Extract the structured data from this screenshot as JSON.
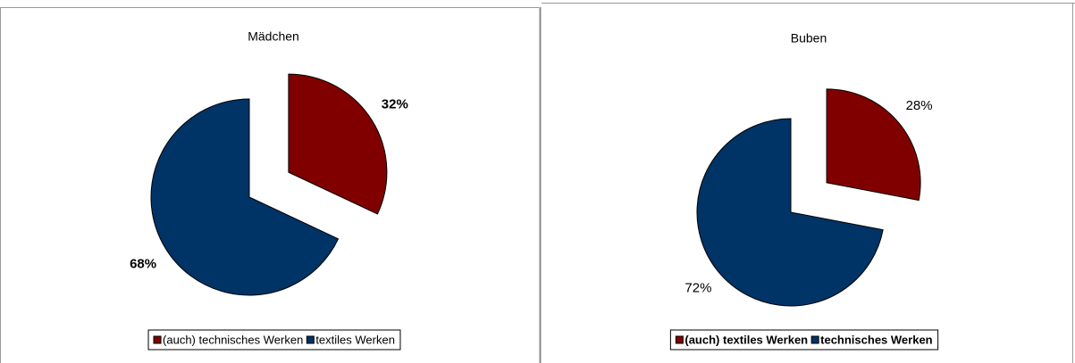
{
  "chart_data": [
    {
      "type": "pie",
      "title": "Mädchen",
      "categories": [
        "(auch) technisches Werken",
        "textiles Werken"
      ],
      "values": [
        32,
        68
      ],
      "value_labels": [
        "32%",
        "68%"
      ],
      "colors": [
        "#800000",
        "#003366"
      ],
      "label_bold": true,
      "legend_bold": false,
      "legend": "bottom"
    },
    {
      "type": "pie",
      "title": "Buben",
      "categories": [
        "(auch) textiles Werken",
        "technisches Werken"
      ],
      "values": [
        28,
        72
      ],
      "value_labels": [
        "28%",
        "72%"
      ],
      "colors": [
        "#800000",
        "#003366"
      ],
      "label_bold": false,
      "legend_bold": true,
      "legend": "bottom"
    }
  ]
}
